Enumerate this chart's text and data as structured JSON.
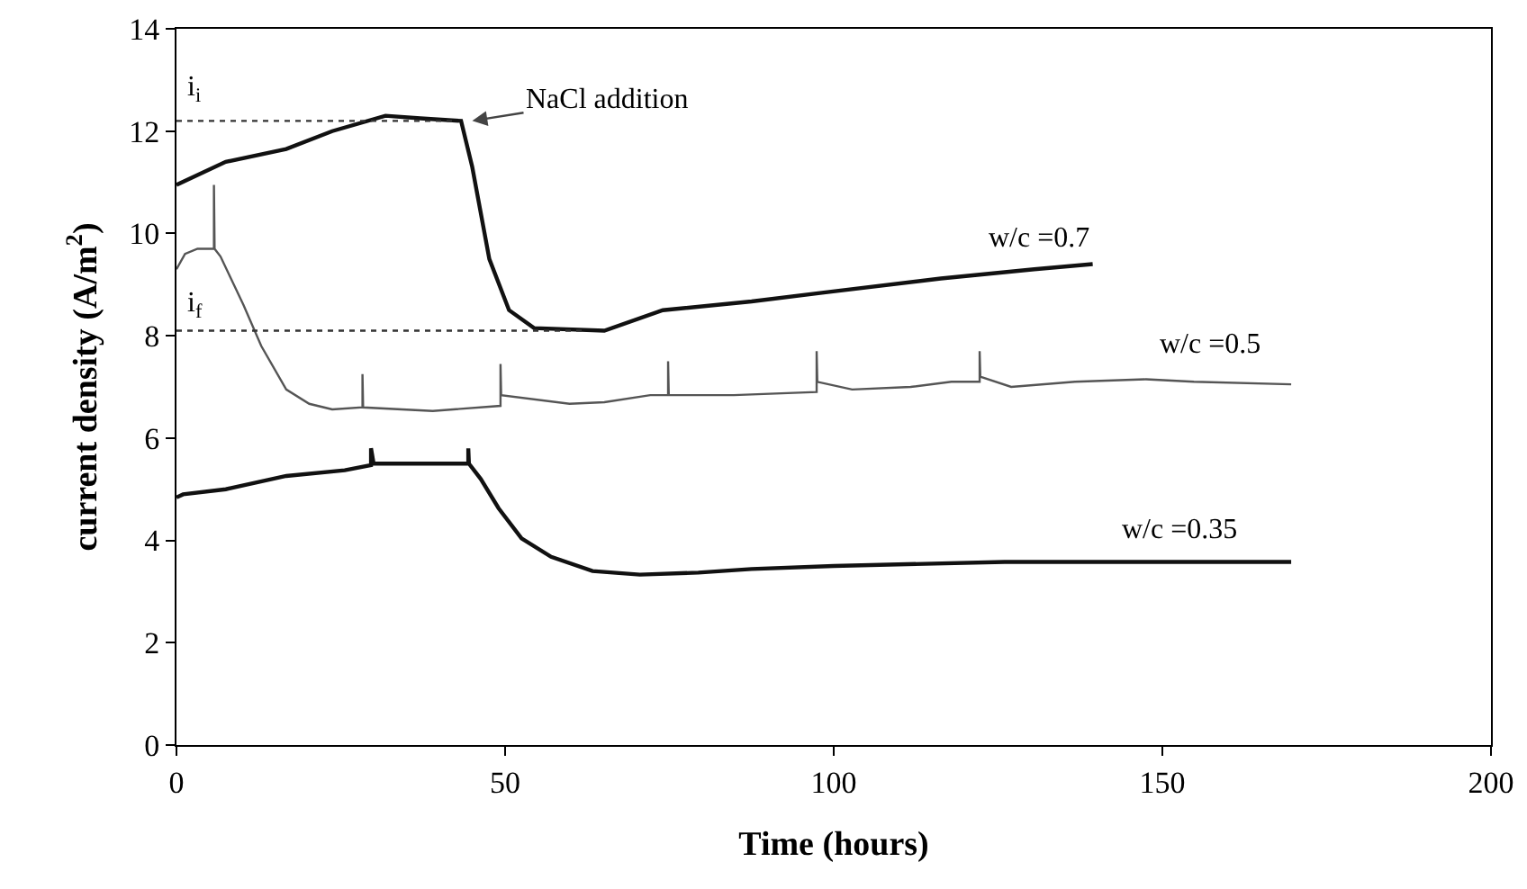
{
  "chart_data": {
    "type": "line",
    "xlabel": "Time (hours)",
    "ylabel": "current density (A/m$^{2}$)",
    "xlim": [
      0,
      200
    ],
    "xticks": [
      0,
      50,
      100,
      150,
      200
    ],
    "ylim": [
      0,
      14
    ],
    "yticks": [
      0,
      2,
      4,
      6,
      8,
      10,
      12,
      14
    ],
    "grid": false,
    "legend": false,
    "marker": "none",
    "line_style": "solid",
    "series": [
      {
        "name": "w/c =0.7",
        "color": "#111111",
        "x": [
          0,
          7.5,
          16.7,
          23.7,
          31.8,
          37.1,
          43.3,
          45,
          47.6,
          50.6,
          54.4,
          65.1,
          74,
          87.5,
          98.2,
          116.3,
          130.5,
          139.4
        ],
        "values": [
          10.95,
          11.4,
          11.65,
          12.0,
          12.3,
          12.25,
          12.2,
          11.3,
          9.5,
          8.5,
          8.15,
          8.1,
          8.5,
          8.67,
          8.84,
          9.12,
          9.3,
          9.4
        ]
      },
      {
        "name": "w/c =0.5",
        "color": "#555555",
        "x": [
          0,
          1.3,
          3.2,
          5.7,
          5.7,
          5.8,
          6.7,
          10.2,
          12.9,
          16.7,
          20.2,
          23.7,
          28.3,
          28.3,
          28.4,
          39,
          49.3,
          49.3,
          49.4,
          59.8,
          65.1,
          72.1,
          74.8,
          74.8,
          74.9,
          84.8,
          97.4,
          97.4,
          97.5,
          102.8,
          111.7,
          117.9,
          122.2,
          122.2,
          122.3,
          127,
          136.7,
          147.5,
          154.8,
          169.6
        ],
        "values": [
          9.3,
          9.6,
          9.7,
          9.7,
          10.95,
          9.7,
          9.55,
          8.6,
          7.8,
          6.95,
          6.67,
          6.56,
          6.6,
          7.25,
          6.6,
          6.53,
          6.63,
          7.45,
          6.84,
          6.67,
          6.7,
          6.84,
          6.84,
          7.5,
          6.84,
          6.84,
          6.9,
          7.7,
          7.1,
          6.95,
          7.0,
          7.1,
          7.1,
          7.7,
          7.2,
          7.0,
          7.1,
          7.15,
          7.1,
          7.05
        ]
      },
      {
        "name": "w/c =0.35",
        "color": "#111111",
        "x": [
          0,
          1,
          7.5,
          16.7,
          25.6,
          29.6,
          29.6,
          30,
          44.4,
          44.4,
          44.5,
          46.3,
          49,
          52.5,
          57,
          63.3,
          70.5,
          79.4,
          87.5,
          100,
          126,
          147.5,
          169.6
        ],
        "values": [
          4.84,
          4.9,
          5.0,
          5.26,
          5.37,
          5.47,
          5.8,
          5.5,
          5.5,
          5.8,
          5.5,
          5.2,
          4.63,
          4.04,
          3.68,
          3.4,
          3.33,
          3.37,
          3.44,
          3.5,
          3.58,
          3.58,
          3.58
        ]
      },
      {
        "name": "i$_{i}$",
        "color": "#333333",
        "type": "line",
        "line_style": "dotted",
        "x": [
          0,
          42
        ],
        "values": [
          12.2,
          12.2
        ]
      },
      {
        "name": "i$_{f}$",
        "color": "#333333",
        "type": "line",
        "line_style": "dotted",
        "x": [
          0,
          62
        ],
        "values": [
          8.1,
          8.1
        ]
      }
    ],
    "annotations": [
      {
        "text": "NaCl addition",
        "x": 45,
        "y": 12.2
      }
    ]
  }
}
